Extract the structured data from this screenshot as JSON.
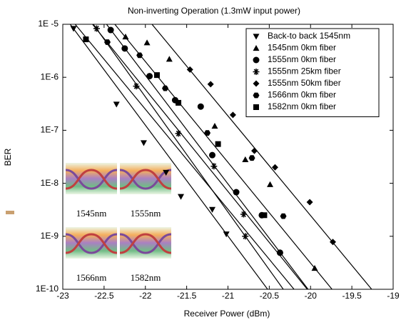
{
  "chart_data": {
    "type": "scatter",
    "title": "Non-inverting Operation (1.3mW input power)",
    "x_label": "Receiver Power (dBm)",
    "y_label": "BER",
    "yscale": "log",
    "xlim": [
      -23,
      -19
    ],
    "ylim": [
      1e-10,
      1e-05
    ],
    "xticks": [
      -23,
      -22.5,
      -22,
      -21.5,
      -21,
      -20.5,
      -20,
      -19.5,
      -19
    ],
    "yticks": [
      {
        "value": 1e-05,
        "label": "1E -5"
      },
      {
        "value": 1e-06,
        "label": "1E-6"
      },
      {
        "value": 1e-07,
        "label": "1E-7"
      },
      {
        "value": 1e-08,
        "label": "1E-8"
      },
      {
        "value": 1e-09,
        "label": "1E-9"
      },
      {
        "value": 1e-10,
        "label": "1E-10"
      }
    ],
    "legend": "top-right",
    "series": [
      {
        "name": "Back-to back 1545nm",
        "marker": "triangle-down",
        "color": "#000000",
        "x": [
          -22.87,
          -22.35,
          -22.02,
          -21.75,
          -21.57,
          -21.19,
          -21.02
        ],
        "values": [
          8.3e-06,
          3.1e-07,
          5.8e-08,
          1.6e-08,
          5.6e-09,
          3.2e-09,
          1.1e-09
        ],
        "fit_x": [
          -22.91,
          -20.52
        ],
        "fit_y": [
          1e-05,
          1e-10
        ]
      },
      {
        "name": "1545nm 0km fiber",
        "marker": "triangle-up",
        "color": "#000000",
        "x": [
          -22.24,
          -21.98,
          -21.71,
          -21.16,
          -20.79,
          -20.49,
          -19.95
        ],
        "values": [
          5.8e-06,
          4.5e-06,
          2.2e-06,
          1.2e-07,
          2.8e-08,
          9.5e-09,
          2.5e-10
        ],
        "fit_x": [
          -22.37,
          -19.74
        ],
        "fit_y": [
          1e-05,
          1e-10
        ]
      },
      {
        "name": "1555nm 0km fiber",
        "marker": "circle",
        "color": "#000000",
        "x": [
          -22.42,
          -22.25,
          -21.95,
          -21.64,
          -21.33,
          -21.19,
          -20.9,
          -20.59,
          -20.37
        ],
        "values": [
          7.8e-06,
          3.5e-06,
          1.05e-06,
          3.7e-07,
          2.8e-07,
          3.4e-08,
          6.8e-09,
          2.5e-09,
          4.9e-10
        ],
        "fit_x": [
          -22.47,
          -20.03
        ],
        "fit_y": [
          1e-05,
          1e-10
        ]
      },
      {
        "name": "1555nm 25km fiber",
        "marker": "asterisk",
        "color": "#000000",
        "x": [
          -22.59,
          -22.11,
          -21.6,
          -21.17,
          -20.81,
          -20.79
        ],
        "values": [
          8.3e-06,
          6.8e-07,
          8.7e-08,
          2.1e-08,
          2.6e-09,
          1e-09
        ],
        "fit_x": [
          -22.63,
          -20.33
        ],
        "fit_y": [
          1e-05,
          1e-10
        ]
      },
      {
        "name": "1555nm 50km fiber",
        "marker": "diamond",
        "color": "#000000",
        "x": [
          -21.46,
          -21.21,
          -20.94,
          -20.68,
          -20.43,
          -20.01,
          -19.73
        ],
        "values": [
          1.4e-06,
          7.4e-07,
          1.95e-07,
          4.1e-08,
          2e-08,
          4.4e-09,
          7.8e-10
        ],
        "fit_x": [
          -21.92,
          -19.26
        ],
        "fit_y": [
          1e-05,
          1e-10
        ]
      },
      {
        "name": "1566nm 0km fiber",
        "marker": "hexagon",
        "color": "#000000",
        "x": [
          -22.46,
          -22.07,
          -21.76,
          -21.25,
          -20.71,
          -20.33
        ],
        "values": [
          4.6e-06,
          2.6e-06,
          6.2e-07,
          8.9e-08,
          3e-08,
          2.4e-09
        ],
        "fit_x": [
          -22.64,
          -20.04
        ],
        "fit_y": [
          1e-05,
          1e-10
        ]
      },
      {
        "name": "1582nm 0km fiber",
        "marker": "square",
        "color": "#000000",
        "x": [
          -22.72,
          -21.86,
          -21.6,
          -21.12,
          -20.56
        ],
        "values": [
          5.2e-06,
          1.1e-06,
          3.3e-07,
          5.5e-08,
          2.5e-09
        ],
        "fit_x": [
          -22.85,
          -20.2
        ],
        "fit_y": [
          1e-05,
          1e-10
        ]
      }
    ],
    "insets": [
      "1545nm",
      "1555nm",
      "1566nm",
      "1582nm"
    ]
  }
}
